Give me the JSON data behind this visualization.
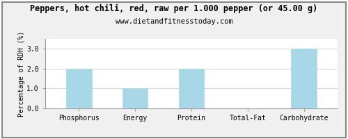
{
  "title": "Peppers, hot chili, red, raw per 1.000 pepper (or 45.00 g)",
  "subtitle": "www.dietandfitnesstoday.com",
  "categories": [
    "Phosphorus",
    "Energy",
    "Protein",
    "Total-Fat",
    "Carbohydrate"
  ],
  "values": [
    2.0,
    1.0,
    2.0,
    0.0,
    3.0
  ],
  "bar_color": "#a8d8e8",
  "ylabel": "Percentage of RDH (%)",
  "ylim": [
    0,
    3.5
  ],
  "yticks": [
    0.0,
    1.0,
    2.0,
    3.0
  ],
  "background_color": "#f0f0f0",
  "plot_bg_color": "#ffffff",
  "grid_color": "#cccccc",
  "title_fontsize": 8.5,
  "subtitle_fontsize": 7.5,
  "ylabel_fontsize": 7,
  "tick_fontsize": 7,
  "border_color": "#999999",
  "outer_border_color": "#888888"
}
